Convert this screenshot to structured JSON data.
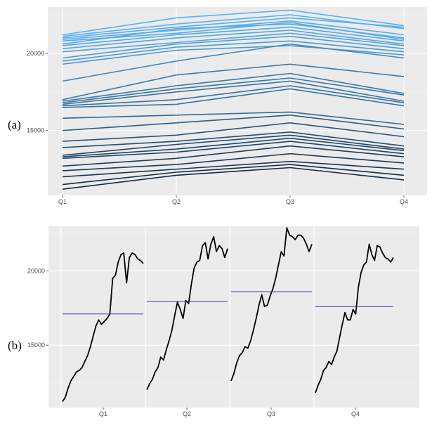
{
  "colors": {
    "panel_bg": "#ebebeb",
    "grid_major": "#ffffff",
    "grid_minor": "#f4f4f4",
    "line_low": "#132b43",
    "line_high": "#56b1f7",
    "series_line": "#000000",
    "mean_line": "#3333cc"
  },
  "chart_data": [
    {
      "label": "(a)",
      "type": "line",
      "categories": [
        "Q1",
        "Q2",
        "Q3",
        "Q4"
      ],
      "y_ticks": [
        15000,
        20000
      ],
      "y_tick_labels": [
        "15000",
        "20000"
      ],
      "ylim": [
        10800,
        23000
      ],
      "grid": true,
      "series": [
        [
          21200,
          22300,
          22800,
          21800
        ],
        [
          21100,
          21900,
          22500,
          21600
        ],
        [
          21000,
          21700,
          22300,
          21700
        ],
        [
          20900,
          21500,
          22100,
          21200
        ],
        [
          20800,
          21300,
          22000,
          20900
        ],
        [
          20600,
          21600,
          21900,
          21000
        ],
        [
          20500,
          21200,
          21700,
          20800
        ],
        [
          20300,
          21000,
          21500,
          20600
        ],
        [
          20100,
          20700,
          21300,
          20500
        ],
        [
          19700,
          20600,
          21100,
          20300
        ],
        [
          19500,
          20400,
          20800,
          20100
        ],
        [
          19300,
          20200,
          20500,
          19900
        ],
        [
          18200,
          19500,
          20600,
          19700
        ],
        [
          17000,
          18600,
          19300,
          18500
        ],
        [
          16900,
          17900,
          18700,
          17400
        ],
        [
          16800,
          17700,
          18400,
          17300
        ],
        [
          16700,
          17500,
          18200,
          16900
        ],
        [
          16600,
          17000,
          17900,
          16800
        ],
        [
          16500,
          16700,
          17700,
          16600
        ],
        [
          15800,
          16000,
          16200,
          15400
        ],
        [
          15000,
          15500,
          16000,
          15100
        ],
        [
          14300,
          14700,
          15500,
          14600
        ],
        [
          13900,
          14300,
          14900,
          14000
        ],
        [
          13400,
          14100,
          14700,
          13800
        ],
        [
          13300,
          13800,
          14500,
          13700
        ],
        [
          13200,
          13600,
          14300,
          13500
        ],
        [
          12700,
          13200,
          14000,
          13300
        ],
        [
          12400,
          12800,
          13500,
          12900
        ],
        [
          12000,
          12500,
          13000,
          12500
        ],
        [
          11500,
          12300,
          12800,
          12100
        ],
        [
          11200,
          12100,
          12600,
          11800
        ]
      ]
    },
    {
      "label": "(b)",
      "type": "line",
      "categories": [
        "Q1",
        "Q2",
        "Q3",
        "Q4"
      ],
      "y_ticks": [
        15000,
        20000
      ],
      "y_tick_labels": [
        "15000",
        "20000"
      ],
      "ylim": [
        10800,
        23000
      ],
      "grid": true,
      "subseries_means": [
        17100,
        17950,
        18600,
        17600
      ],
      "subseries": [
        [
          11200,
          11500,
          12100,
          12600,
          12900,
          13200,
          13300,
          13500,
          13900,
          14300,
          14900,
          15600,
          16300,
          16700,
          16400,
          16600,
          16800,
          17100,
          19500,
          19700,
          20600,
          21100,
          21200,
          19200,
          20900,
          21200,
          21100,
          20800,
          20700,
          20500
        ],
        [
          12000,
          12400,
          12700,
          13200,
          13500,
          14200,
          14000,
          14700,
          15300,
          16000,
          17000,
          17900,
          17400,
          16800,
          18000,
          17800,
          19100,
          20200,
          20600,
          20700,
          21700,
          21900,
          20800,
          21800,
          22300,
          21300,
          21700,
          21500,
          20900,
          21500
        ],
        [
          12600,
          13100,
          13800,
          14300,
          14500,
          14900,
          14800,
          15300,
          16000,
          16800,
          17700,
          18400,
          17600,
          17700,
          18300,
          18800,
          19500,
          20400,
          21300,
          21000,
          22900,
          22400,
          22300,
          22100,
          22400,
          22400,
          22200,
          21800,
          21300,
          21800
        ],
        [
          11800,
          12300,
          12700,
          13300,
          13500,
          13900,
          13700,
          14200,
          14600,
          15500,
          16400,
          17200,
          16700,
          16700,
          17400,
          17100,
          18900,
          19900,
          20400,
          20600,
          21800,
          21100,
          20700,
          21700,
          21600,
          21200,
          20900,
          20800,
          20600,
          20900
        ]
      ]
    }
  ]
}
